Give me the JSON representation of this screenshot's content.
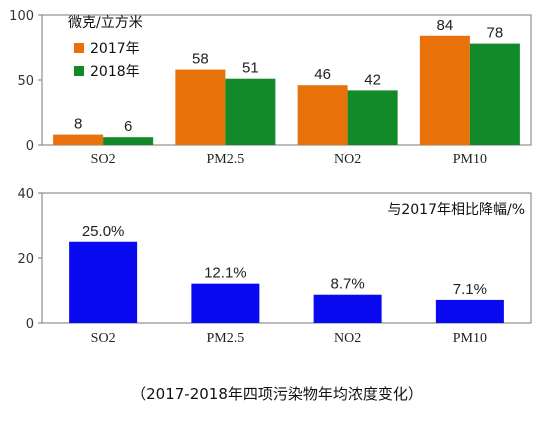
{
  "caption": "（2017-2018年四项污染物年均浓度变化）",
  "chart_data": [
    {
      "type": "bar",
      "categories": [
        "SO2",
        "PM2.5",
        "NO2",
        "PM10"
      ],
      "series": [
        {
          "name": "2017年",
          "values": [
            8,
            58,
            46,
            84
          ],
          "labels": [
            "8",
            "58",
            "46",
            "84"
          ],
          "color": "#E8710A"
        },
        {
          "name": "2018年",
          "values": [
            6,
            51,
            42,
            78
          ],
          "labels": [
            "6",
            "51",
            "42",
            "78"
          ],
          "color": "#128A2A"
        }
      ],
      "unit_label": "微克/立方米",
      "ylim": [
        0,
        100
      ],
      "yticks": [
        "0",
        "50",
        "100"
      ],
      "grid": false,
      "legend": "top-left"
    },
    {
      "type": "bar",
      "categories": [
        "SO2",
        "PM2.5",
        "NO2",
        "PM10"
      ],
      "series": [
        {
          "name": "与2017年相比降幅/%",
          "values": [
            25.0,
            12.1,
            8.7,
            7.1
          ],
          "labels": [
            "25.0%",
            "12.1%",
            "8.7%",
            "7.1%"
          ],
          "color": "#0A0AF0"
        }
      ],
      "ylim": [
        0,
        40
      ],
      "yticks": [
        "0",
        "20",
        "40"
      ],
      "grid": false,
      "legend": "top-right"
    }
  ]
}
